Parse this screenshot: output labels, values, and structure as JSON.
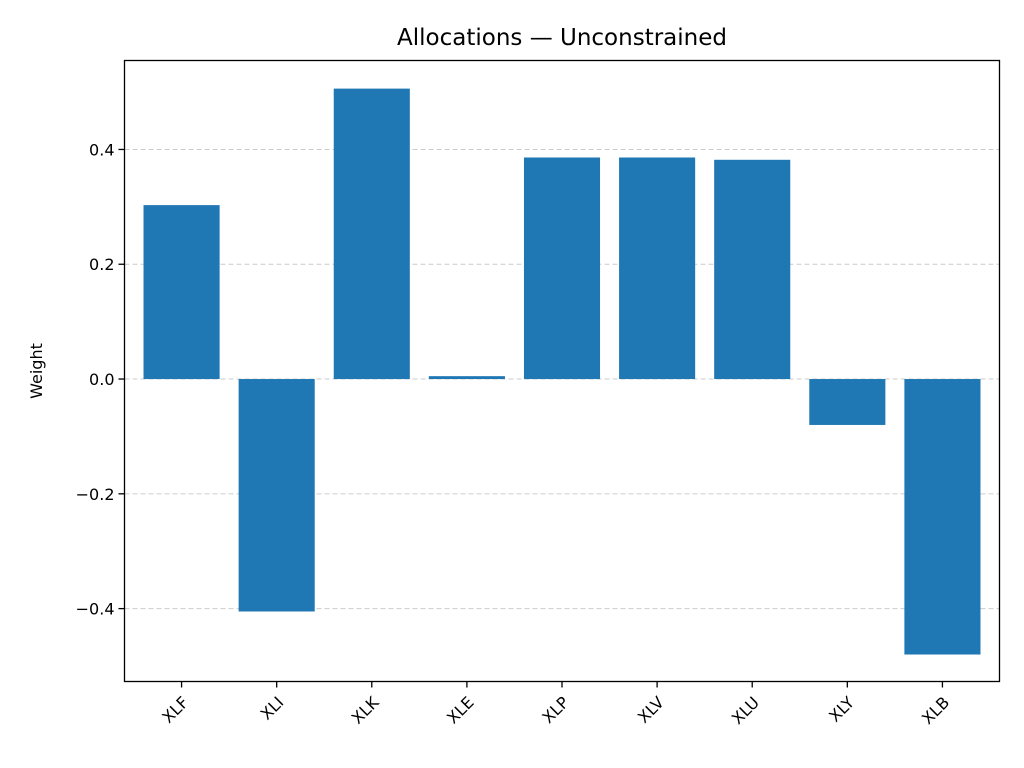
{
  "chart_data": {
    "type": "bar",
    "title": "Allocations — Unconstrained",
    "xlabel": "",
    "ylabel": "Weight",
    "categories": [
      "XLF",
      "XLI",
      "XLK",
      "XLE",
      "XLP",
      "XLV",
      "XLU",
      "XLY",
      "XLB"
    ],
    "values": [
      0.303,
      -0.405,
      0.506,
      0.005,
      0.386,
      0.386,
      0.382,
      -0.08,
      -0.48
    ],
    "ylim": [
      -0.527,
      0.555
    ],
    "yticks": [
      -0.4,
      -0.2,
      0.0,
      0.2,
      0.4
    ],
    "ytick_labels": [
      "−0.4",
      "−0.2",
      "0.0",
      "0.2",
      "0.4"
    ],
    "grid": "y, dashed",
    "bar_color": "#1f77b4",
    "grid_color": "#cccccc"
  }
}
